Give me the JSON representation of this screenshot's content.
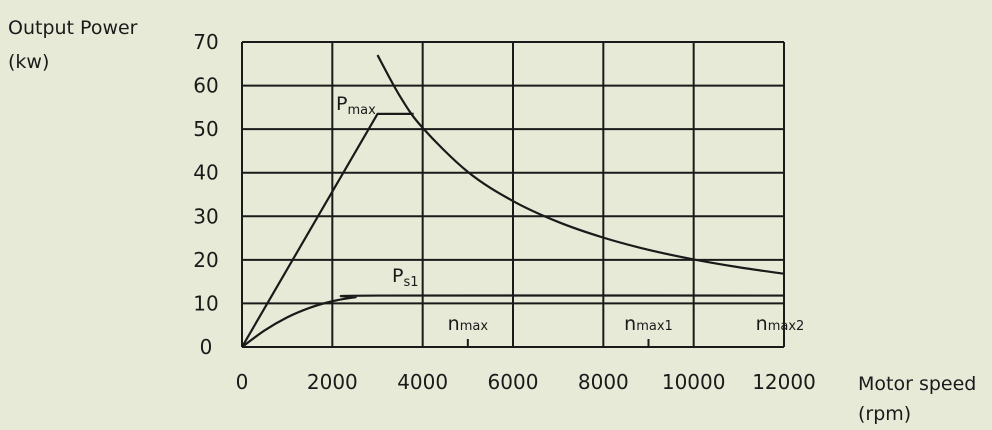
{
  "chart_data": {
    "type": "line",
    "ylabel": [
      "Output Power",
      "(kw)"
    ],
    "xlabel": [
      "Motor speed",
      "(rpm)"
    ],
    "xlim": [
      0,
      12000
    ],
    "ylim": [
      0,
      70
    ],
    "x_ticks": [
      0,
      2000,
      4000,
      6000,
      8000,
      10000,
      12000
    ],
    "y_ticks": [
      0,
      10,
      20,
      30,
      40,
      50,
      60,
      70
    ],
    "grid": true,
    "colors": {
      "line": "#1a1a1a",
      "grid": "#1a1a1a",
      "background": "#e8ead8"
    },
    "series": [
      {
        "name": "Pmax",
        "label_main": "P",
        "label_sub": "max",
        "x": [
          0,
          3000,
          3800
        ],
        "y": [
          0,
          53.5,
          53.5
        ]
      },
      {
        "name": "Ps1",
        "label_main": "P",
        "label_sub": "s1",
        "x": [
          0,
          500,
          1000,
          1500,
          2000,
          2500,
          3000,
          12000
        ],
        "y": [
          0,
          3.8,
          6.8,
          9.0,
          10.5,
          11.4,
          11.8,
          11.8
        ]
      },
      {
        "name": "hyperbola",
        "x": [
          3000,
          3500,
          4000,
          5000,
          6000,
          7000,
          8000,
          9000,
          10000,
          11000,
          12000
        ],
        "y": [
          67,
          57.5,
          50.3,
          40.2,
          33.5,
          28.7,
          25.1,
          22.3,
          20.1,
          18.3,
          16.8
        ]
      }
    ],
    "annotations": [
      {
        "main": "n",
        "sub": "max",
        "x": 5000
      },
      {
        "main": "n",
        "sub": "max1",
        "x": 9000
      },
      {
        "main": "n",
        "sub": "max2",
        "x": 12000
      }
    ]
  }
}
